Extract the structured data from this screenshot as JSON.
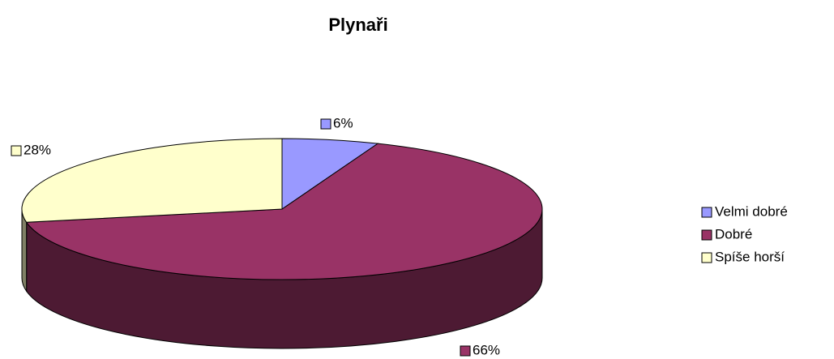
{
  "chart_data": {
    "type": "pie",
    "title": "Plynaři",
    "categories": [
      "Velmi dobré",
      "Dobré",
      "Spíše horší"
    ],
    "values": [
      6,
      66,
      28
    ],
    "value_labels": [
      "6%",
      "66%",
      "28%"
    ],
    "colors": [
      "#9999ff",
      "#993366",
      "#ffffcc"
    ],
    "legend": "right"
  }
}
